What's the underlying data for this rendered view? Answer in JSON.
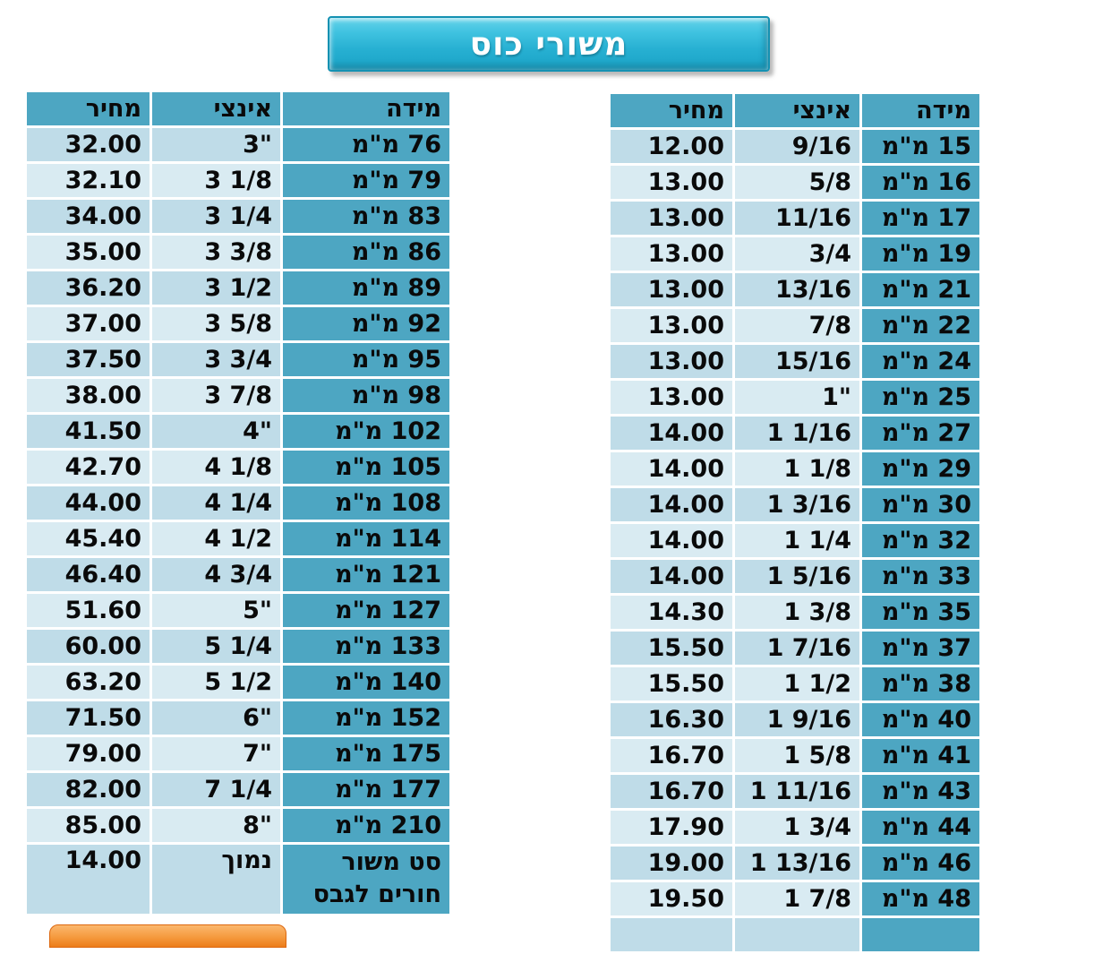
{
  "title": {
    "label": "משורי כוס"
  },
  "colors": {
    "accent": "#4da6c2",
    "band_dark": "#bfdce8",
    "band_light": "#d9ebf2",
    "title_bg": "#35bcdc",
    "title_border": "#1491b2",
    "orange": "#ef8a28",
    "text": "#0a0a0a"
  },
  "right_table": {
    "headers": {
      "size": "מידה",
      "inch": "אינצי",
      "price": "מחיר"
    },
    "rows": [
      {
        "size": "15 מ\"מ",
        "inch": "9/16",
        "price": "12.00"
      },
      {
        "size": "16 מ\"מ",
        "inch": "5/8",
        "price": "13.00"
      },
      {
        "size": "17 מ\"מ",
        "inch": "11/16",
        "price": "13.00"
      },
      {
        "size": "19 מ\"מ",
        "inch": "3/4",
        "price": "13.00"
      },
      {
        "size": "21 מ\"מ",
        "inch": "13/16",
        "price": "13.00"
      },
      {
        "size": "22 מ\"מ",
        "inch": "7/8",
        "price": "13.00"
      },
      {
        "size": "24 מ\"מ",
        "inch": "15/16",
        "price": "13.00"
      },
      {
        "size": "25 מ\"מ",
        "inch": "1\"",
        "price": "13.00"
      },
      {
        "size": "27 מ\"מ",
        "inch": "1 1/16",
        "price": "14.00"
      },
      {
        "size": "29 מ\"מ",
        "inch": "1 1/8",
        "price": "14.00"
      },
      {
        "size": "30 מ\"מ",
        "inch": "1 3/16",
        "price": "14.00"
      },
      {
        "size": "32 מ\"מ",
        "inch": "1 1/4",
        "price": "14.00"
      },
      {
        "size": "33 מ\"מ",
        "inch": "1 5/16",
        "price": "14.00"
      },
      {
        "size": "35 מ\"מ",
        "inch": "1 3/8",
        "price": "14.30"
      },
      {
        "size": "37 מ\"מ",
        "inch": "1 7/16",
        "price": "15.50"
      },
      {
        "size": "38 מ\"מ",
        "inch": "1 1/2",
        "price": "15.50"
      },
      {
        "size": "40 מ\"מ",
        "inch": "1 9/16",
        "price": "16.30"
      },
      {
        "size": "41 מ\"מ",
        "inch": "1 5/8",
        "price": "16.70"
      },
      {
        "size": "43 מ\"מ",
        "inch": "1 11/16",
        "price": "16.70"
      },
      {
        "size": "44 מ\"מ",
        "inch": "1 3/4",
        "price": "17.90"
      },
      {
        "size": "46 מ\"מ",
        "inch": "1 13/16",
        "price": "19.00"
      },
      {
        "size": "48 מ\"מ",
        "inch": "1 7/8",
        "price": "19.50"
      },
      {
        "size": "",
        "inch": "",
        "price": "",
        "partial": true
      }
    ]
  },
  "left_table": {
    "headers": {
      "size": "מידה",
      "inch": "אינצי",
      "price": "מחיר"
    },
    "rows": [
      {
        "size": "76 מ\"מ",
        "inch": "3\"",
        "price": "32.00"
      },
      {
        "size": "79 מ\"מ",
        "inch": "3 1/8",
        "price": "32.10"
      },
      {
        "size": "83 מ\"מ",
        "inch": "3 1/4",
        "price": "34.00"
      },
      {
        "size": "86 מ\"מ",
        "inch": "3 3/8",
        "price": "35.00"
      },
      {
        "size": "89 מ\"מ",
        "inch": "3 1/2",
        "price": "36.20"
      },
      {
        "size": "92 מ\"מ",
        "inch": "3 5/8",
        "price": "37.00"
      },
      {
        "size": "95 מ\"מ",
        "inch": "3 3/4",
        "price": "37.50"
      },
      {
        "size": "98 מ\"מ",
        "inch": "3 7/8",
        "price": "38.00"
      },
      {
        "size": "102 מ\"מ",
        "inch": "4\"",
        "price": "41.50"
      },
      {
        "size": "105 מ\"מ",
        "inch": "4 1/8",
        "price": "42.70"
      },
      {
        "size": "108 מ\"מ",
        "inch": "4 1/4",
        "price": "44.00"
      },
      {
        "size": "114 מ\"מ",
        "inch": "4 1/2",
        "price": "45.40"
      },
      {
        "size": "121 מ\"מ",
        "inch": "4 3/4",
        "price": "46.40"
      },
      {
        "size": "127 מ\"מ",
        "inch": "5\"",
        "price": "51.60"
      },
      {
        "size": "133 מ\"מ",
        "inch": "5 1/4",
        "price": "60.00"
      },
      {
        "size": "140 מ\"מ",
        "inch": "5 1/2",
        "price": "63.20"
      },
      {
        "size": "152 מ\"מ",
        "inch": "6\"",
        "price": "71.50"
      },
      {
        "size": "175 מ\"מ",
        "inch": "7\"",
        "price": "79.00"
      },
      {
        "size": "177 מ\"מ",
        "inch": "7 1/4",
        "price": "82.00"
      },
      {
        "size": "210 מ\"מ",
        "inch": "8\"",
        "price": "85.00"
      },
      {
        "size": "סט משור\nחורים לגבס",
        "inch": "נמוך",
        "price": "14.00",
        "tall": true
      }
    ]
  }
}
